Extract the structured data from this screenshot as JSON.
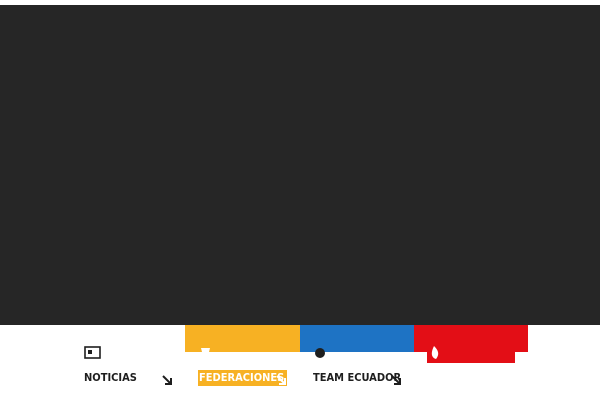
{
  "nav": {
    "items": [
      {
        "label": "NOTICIAS"
      },
      {
        "label": "FEDERACIONES"
      },
      {
        "label": "TEAM ECUADOR"
      }
    ]
  }
}
